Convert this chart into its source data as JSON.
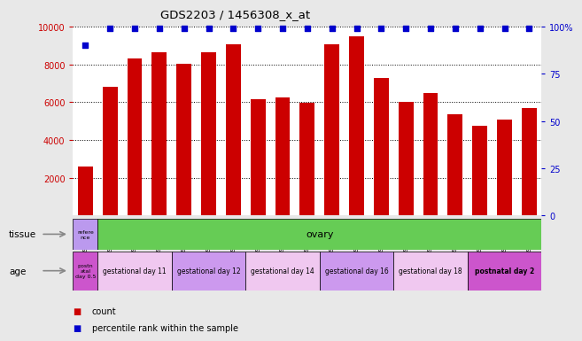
{
  "title": "GDS2203 / 1456308_x_at",
  "samples": [
    "GSM120857",
    "GSM120854",
    "GSM120855",
    "GSM120856",
    "GSM120851",
    "GSM120852",
    "GSM120853",
    "GSM120848",
    "GSM120849",
    "GSM120850",
    "GSM120845",
    "GSM120846",
    "GSM120847",
    "GSM120842",
    "GSM120843",
    "GSM120844",
    "GSM120839",
    "GSM120840",
    "GSM120841"
  ],
  "counts": [
    2600,
    6800,
    8300,
    8650,
    8050,
    8650,
    9050,
    6150,
    6250,
    5950,
    9050,
    9500,
    7300,
    6000,
    6500,
    5350,
    4750,
    5100,
    5700
  ],
  "percentile_ranks": [
    90,
    99,
    99,
    99,
    99,
    99,
    99,
    99,
    99,
    99,
    99,
    99,
    99,
    99,
    99,
    99,
    99,
    99,
    99
  ],
  "ylim_left": [
    0,
    10000
  ],
  "ylim_right": [
    0,
    100
  ],
  "yticks_left": [
    2000,
    4000,
    6000,
    8000,
    10000
  ],
  "yticks_right": [
    0,
    25,
    50,
    75,
    100
  ],
  "bar_color": "#cc0000",
  "dot_color": "#0000cc",
  "background_color": "#e8e8e8",
  "plot_bg_color": "#ffffff",
  "age_groups": [
    {
      "label": "postn\natal\nday 0.5",
      "color": "#cc55cc",
      "count": 1
    },
    {
      "label": "gestational day 11",
      "color": "#f0c8f0",
      "count": 3
    },
    {
      "label": "gestational day 12",
      "color": "#cc99ee",
      "count": 3
    },
    {
      "label": "gestational day 14",
      "color": "#f0c8f0",
      "count": 3
    },
    {
      "label": "gestational day 16",
      "color": "#cc99ee",
      "count": 3
    },
    {
      "label": "gestational day 18",
      "color": "#f0c8f0",
      "count": 3
    },
    {
      "label": "postnatal day 2",
      "color": "#cc55cc",
      "count": 3
    }
  ],
  "tissue_ref_color": "#bb99ee",
  "tissue_ovary_color": "#66cc55",
  "legend_items": [
    {
      "label": "count",
      "color": "#cc0000"
    },
    {
      "label": "percentile rank within the sample",
      "color": "#0000cc"
    }
  ]
}
